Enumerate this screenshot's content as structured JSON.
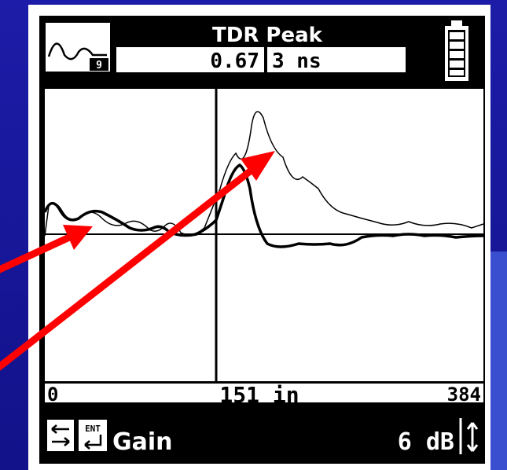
{
  "header": {
    "title": "TDR Peak",
    "icon_number": "9",
    "reading": "0.67",
    "pulse": "3 ns"
  },
  "axis": {
    "start": "0",
    "cursor": "151 in",
    "end": "384"
  },
  "footer": {
    "enter": "ENT",
    "label": "Gain",
    "value": "6 dB"
  }
}
